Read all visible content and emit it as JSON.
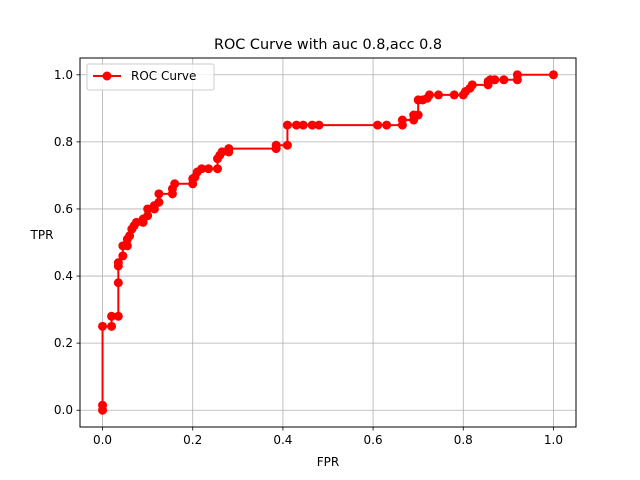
{
  "chart_data": {
    "type": "line",
    "title": "ROC Curve with auc 0.8,acc 0.8",
    "xlabel": "FPR",
    "ylabel": "TPR",
    "xlim": [
      -0.05,
      1.05
    ],
    "ylim": [
      -0.05,
      1.05
    ],
    "xticks": [
      0.0,
      0.2,
      0.4,
      0.6,
      0.8,
      1.0
    ],
    "yticks": [
      0.0,
      0.2,
      0.4,
      0.6,
      0.8,
      1.0
    ],
    "xtick_labels": [
      "0.0",
      "0.2",
      "0.4",
      "0.6",
      "0.8",
      "1.0"
    ],
    "ytick_labels": [
      "0.0",
      "0.2",
      "0.4",
      "0.6",
      "0.8",
      "1.0"
    ],
    "grid": true,
    "legend_position": "top-left",
    "series": [
      {
        "name": "ROC Curve",
        "color": "#ff0000",
        "marker": "circle",
        "points": [
          [
            0.0,
            0.0
          ],
          [
            0.0,
            0.015
          ],
          [
            0.0,
            0.25
          ],
          [
            0.02,
            0.25
          ],
          [
            0.02,
            0.28
          ],
          [
            0.035,
            0.28
          ],
          [
            0.035,
            0.38
          ],
          [
            0.035,
            0.43
          ],
          [
            0.035,
            0.44
          ],
          [
            0.045,
            0.46
          ],
          [
            0.045,
            0.49
          ],
          [
            0.055,
            0.49
          ],
          [
            0.055,
            0.51
          ],
          [
            0.06,
            0.52
          ],
          [
            0.065,
            0.54
          ],
          [
            0.07,
            0.55
          ],
          [
            0.075,
            0.56
          ],
          [
            0.09,
            0.56
          ],
          [
            0.09,
            0.57
          ],
          [
            0.1,
            0.58
          ],
          [
            0.1,
            0.6
          ],
          [
            0.115,
            0.6
          ],
          [
            0.115,
            0.61
          ],
          [
            0.125,
            0.62
          ],
          [
            0.125,
            0.645
          ],
          [
            0.155,
            0.645
          ],
          [
            0.155,
            0.66
          ],
          [
            0.16,
            0.675
          ],
          [
            0.2,
            0.675
          ],
          [
            0.2,
            0.69
          ],
          [
            0.205,
            0.695
          ],
          [
            0.21,
            0.71
          ],
          [
            0.22,
            0.72
          ],
          [
            0.235,
            0.72
          ],
          [
            0.255,
            0.72
          ],
          [
            0.255,
            0.75
          ],
          [
            0.26,
            0.76
          ],
          [
            0.265,
            0.77
          ],
          [
            0.28,
            0.77
          ],
          [
            0.28,
            0.78
          ],
          [
            0.385,
            0.78
          ],
          [
            0.385,
            0.79
          ],
          [
            0.41,
            0.79
          ],
          [
            0.41,
            0.85
          ],
          [
            0.43,
            0.85
          ],
          [
            0.445,
            0.85
          ],
          [
            0.465,
            0.85
          ],
          [
            0.48,
            0.85
          ],
          [
            0.61,
            0.85
          ],
          [
            0.63,
            0.85
          ],
          [
            0.665,
            0.85
          ],
          [
            0.665,
            0.865
          ],
          [
            0.69,
            0.865
          ],
          [
            0.69,
            0.88
          ],
          [
            0.7,
            0.88
          ],
          [
            0.7,
            0.925
          ],
          [
            0.71,
            0.925
          ],
          [
            0.72,
            0.93
          ],
          [
            0.725,
            0.94
          ],
          [
            0.745,
            0.94
          ],
          [
            0.78,
            0.94
          ],
          [
            0.8,
            0.94
          ],
          [
            0.805,
            0.95
          ],
          [
            0.815,
            0.96
          ],
          [
            0.82,
            0.97
          ],
          [
            0.855,
            0.97
          ],
          [
            0.855,
            0.98
          ],
          [
            0.86,
            0.985
          ],
          [
            0.87,
            0.985
          ],
          [
            0.89,
            0.985
          ],
          [
            0.92,
            0.985
          ],
          [
            0.92,
            1.0
          ],
          [
            1.0,
            1.0
          ]
        ]
      }
    ]
  }
}
